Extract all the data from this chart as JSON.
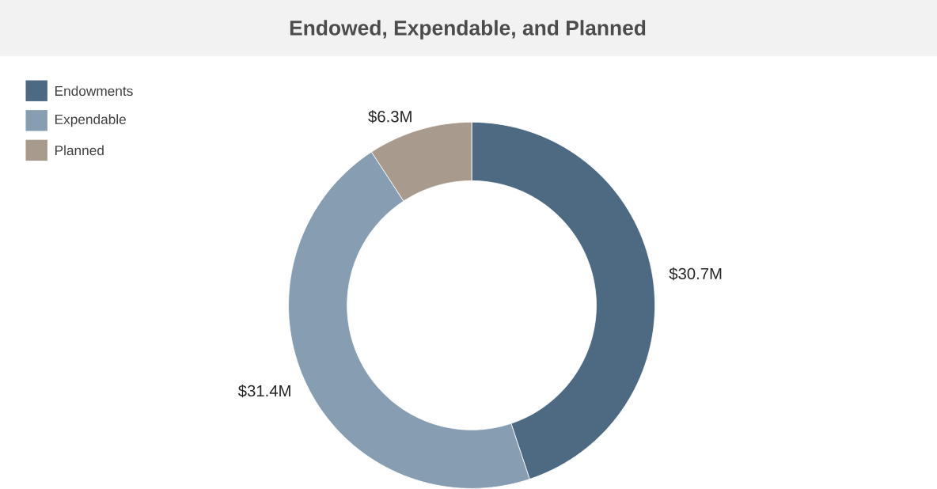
{
  "chart_data": {
    "type": "donut",
    "title": "Endowed, Expendable, and Planned",
    "categories": [
      "Endowments",
      "Expendable",
      "Planned"
    ],
    "values": [
      30.7,
      31.4,
      6.3
    ],
    "colors": [
      "#4e6a82",
      "#869db2",
      "#a89a8c"
    ],
    "value_labels": [
      "$30.7M",
      "$31.4M",
      "$6.3M"
    ],
    "legend": "top left"
  }
}
